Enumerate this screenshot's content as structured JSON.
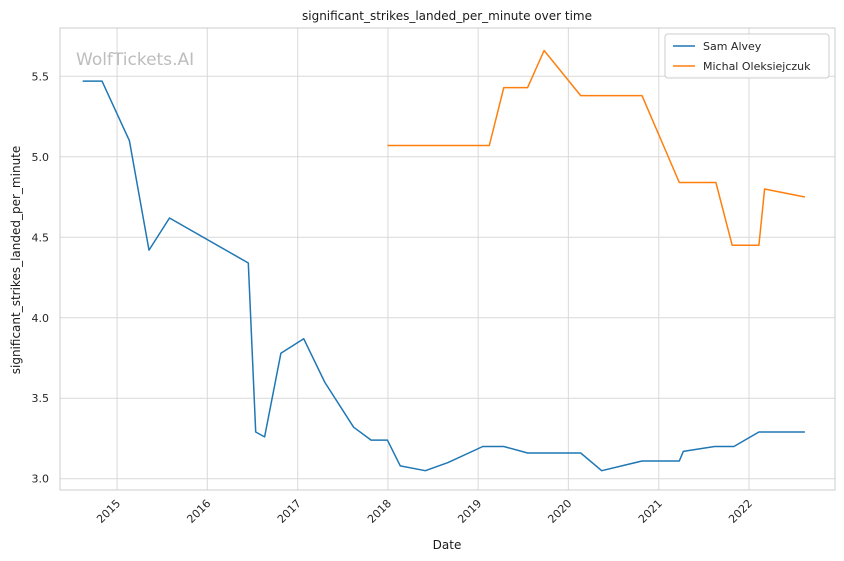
{
  "chart_data": {
    "type": "line",
    "title": "significant_strikes_landed_per_minute over time",
    "xlabel": "Date",
    "ylabel": "significant_strikes_landed_per_minute",
    "watermark": "WolfTickets.AI",
    "xlim": [
      "2014-05-15",
      "2022-12-15"
    ],
    "ylim": [
      2.93,
      5.8
    ],
    "x_ticks": [
      "2015-01-01",
      "2016-01-01",
      "2017-01-01",
      "2018-01-01",
      "2019-01-01",
      "2020-01-01",
      "2021-01-01",
      "2022-01-01"
    ],
    "x_tick_labels": [
      "2015",
      "2016",
      "2017",
      "2018",
      "2019",
      "2020",
      "2021",
      "2022"
    ],
    "y_ticks": [
      3.0,
      3.5,
      4.0,
      4.5,
      5.0,
      5.5
    ],
    "y_tick_labels": [
      "3.0",
      "3.5",
      "4.0",
      "4.5",
      "5.0",
      "5.5"
    ],
    "grid": true,
    "legend_position": "top-right",
    "series": [
      {
        "name": "Sam Alvey",
        "color": "#1f77b4",
        "points": [
          [
            "2014-08-15",
            5.47
          ],
          [
            "2014-11-01",
            5.47
          ],
          [
            "2015-02-20",
            5.1
          ],
          [
            "2015-05-10",
            4.42
          ],
          [
            "2015-08-01",
            4.62
          ],
          [
            "2016-06-15",
            4.34
          ],
          [
            "2016-07-15",
            3.29
          ],
          [
            "2016-08-20",
            3.26
          ],
          [
            "2016-10-25",
            3.78
          ],
          [
            "2017-01-25",
            3.87
          ],
          [
            "2017-04-20",
            3.6
          ],
          [
            "2017-08-15",
            3.32
          ],
          [
            "2017-10-25",
            3.24
          ],
          [
            "2017-12-30",
            3.24
          ],
          [
            "2018-02-20",
            3.08
          ],
          [
            "2018-06-01",
            3.05
          ],
          [
            "2018-09-01",
            3.1
          ],
          [
            "2019-01-20",
            3.2
          ],
          [
            "2019-04-15",
            3.2
          ],
          [
            "2019-07-20",
            3.16
          ],
          [
            "2020-02-20",
            3.16
          ],
          [
            "2020-05-15",
            3.05
          ],
          [
            "2020-10-25",
            3.11
          ],
          [
            "2021-03-25",
            3.11
          ],
          [
            "2021-04-10",
            3.17
          ],
          [
            "2021-08-15",
            3.2
          ],
          [
            "2021-11-01",
            3.2
          ],
          [
            "2022-02-10",
            3.29
          ],
          [
            "2022-08-15",
            3.29
          ]
        ]
      },
      {
        "name": "Michal Oleksiejczuk",
        "color": "#ff7f0e",
        "points": [
          [
            "2017-12-30",
            5.07
          ],
          [
            "2019-02-15",
            5.07
          ],
          [
            "2019-04-15",
            5.43
          ],
          [
            "2019-07-20",
            5.43
          ],
          [
            "2019-09-25",
            5.66
          ],
          [
            "2020-02-20",
            5.38
          ],
          [
            "2020-10-25",
            5.38
          ],
          [
            "2021-03-25",
            4.84
          ],
          [
            "2021-08-20",
            4.84
          ],
          [
            "2021-10-25",
            4.45
          ],
          [
            "2022-02-10",
            4.45
          ],
          [
            "2022-03-05",
            4.8
          ],
          [
            "2022-08-15",
            4.75
          ]
        ]
      }
    ]
  }
}
